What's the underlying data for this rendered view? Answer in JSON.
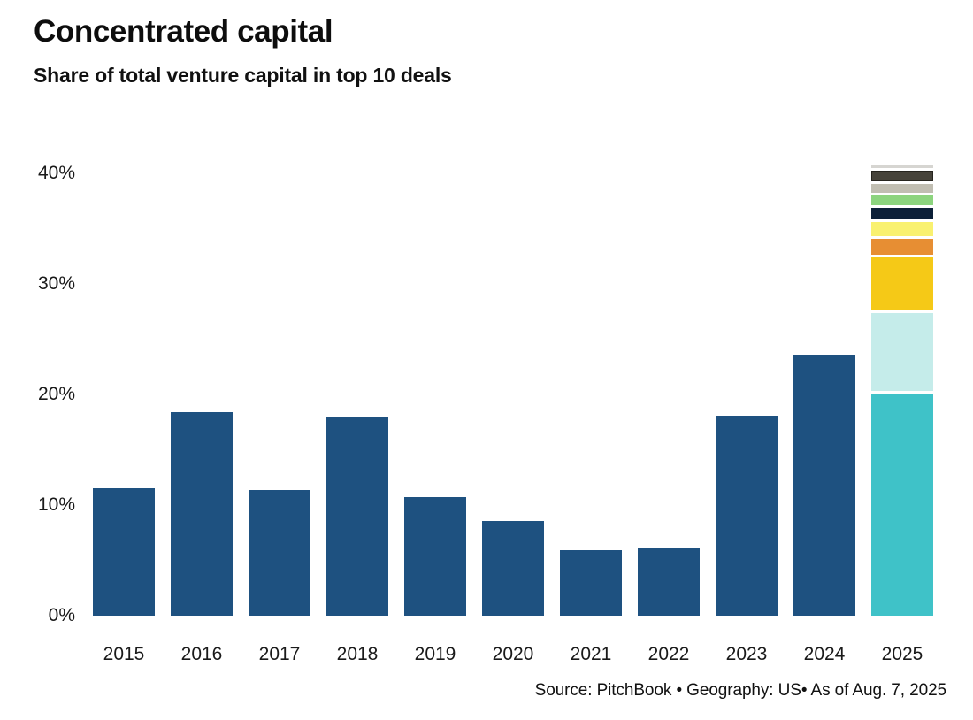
{
  "header": {
    "title": "Concentrated capital",
    "subtitle": "Share of total venture capital in top 10 deals"
  },
  "footer": {
    "source": "Source: PitchBook • Geography: US• As of Aug. 7, 2025"
  },
  "colors": {
    "background": "#ffffff",
    "bar_blue": "#1e5180",
    "text": "#111111"
  },
  "chart_data": {
    "type": "bar",
    "title": "Concentrated capital",
    "subtitle": "Share of total venture capital in top 10 deals",
    "xlabel": "",
    "ylabel": "Share of total venture capital in top 10 deals (%)",
    "ylim": [
      0,
      40
    ],
    "grid": false,
    "legend": "none",
    "bar_color": "#1e5180",
    "categories": [
      "2015",
      "2016",
      "2017",
      "2018",
      "2019",
      "2020",
      "2021",
      "2022",
      "2023",
      "2024",
      "2025"
    ],
    "values": [
      11.5,
      18.4,
      11.4,
      18.0,
      10.7,
      8.6,
      5.9,
      6.2,
      18.1,
      23.6,
      null
    ],
    "yticks": [
      {
        "label": "0%",
        "value": 0
      },
      {
        "label": "10%",
        "value": 10
      },
      {
        "label": "20%",
        "value": 20
      },
      {
        "label": "30%",
        "value": 30
      },
      {
        "label": "40%",
        "value": 40
      }
    ],
    "stacked_bar": {
      "category": "2025",
      "total_pct": 38.6,
      "segments_bottom_to_top": [
        {
          "name": "teal",
          "value": 20.1,
          "color": "#3fc2c8"
        },
        {
          "name": "pale-cyan",
          "value": 7.0,
          "color": "#c5ecea"
        },
        {
          "name": "gold",
          "value": 4.8,
          "color": "#f5c917"
        },
        {
          "name": "orange",
          "value": 1.5,
          "color": "#e78e33"
        },
        {
          "name": "pale-yellow",
          "value": 1.25,
          "color": "#f9f170"
        },
        {
          "name": "navy",
          "value": 1.0,
          "color": "#0c1f38"
        },
        {
          "name": "green",
          "value": 0.9,
          "color": "#8cd47e"
        },
        {
          "name": "tan-gray",
          "value": 0.8,
          "color": "#c1beb2"
        },
        {
          "name": "charcoal",
          "value": 1.0,
          "color": "#46433a",
          "border": "#26241e"
        },
        {
          "name": "light-gray",
          "value": 0.25,
          "color": "#d6d5d1"
        }
      ]
    }
  }
}
